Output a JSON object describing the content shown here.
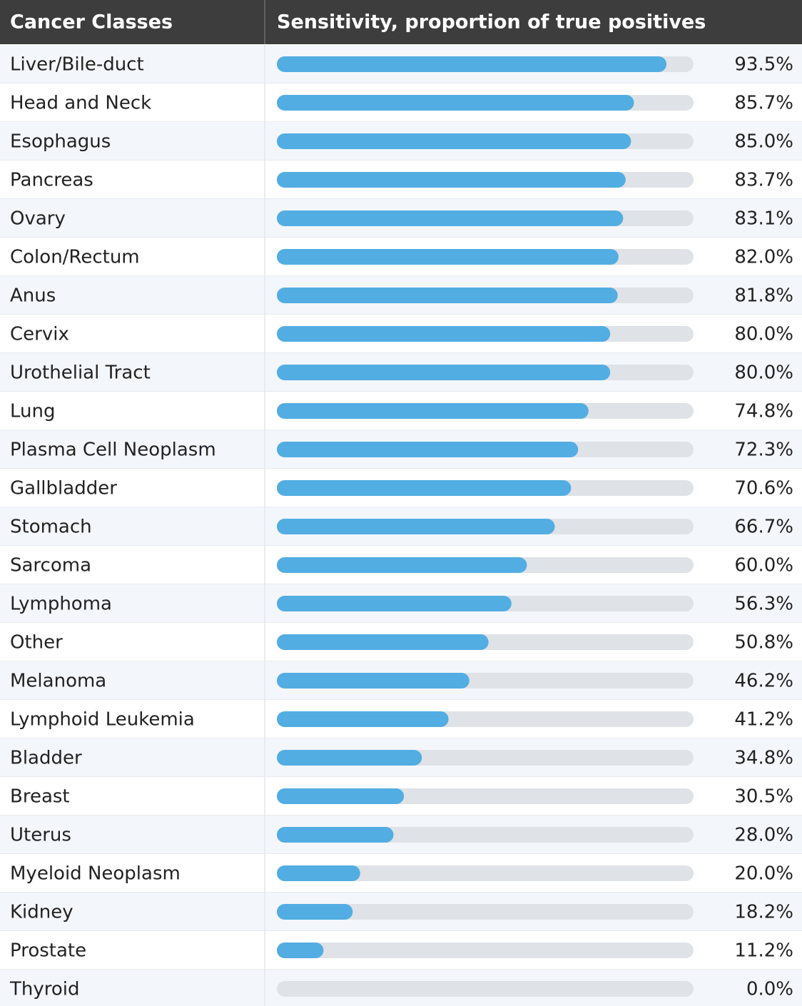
{
  "chart_data": {
    "type": "bar",
    "category_header": "Cancer Classes",
    "value_header": "Sensitivity, proportion of true positives",
    "categories": [
      "Liver/Bile-duct",
      "Head and Neck",
      "Esophagus",
      "Pancreas",
      "Ovary",
      "Colon/Rectum",
      "Anus",
      "Cervix",
      "Urothelial Tract",
      "Lung",
      "Plasma Cell Neoplasm",
      "Gallbladder",
      "Stomach",
      "Sarcoma",
      "Lymphoma",
      "Other",
      "Melanoma",
      "Lymphoid Leukemia",
      "Bladder",
      "Breast",
      "Uterus",
      "Myeloid Neoplasm",
      "Kidney",
      "Prostate",
      "Thyroid"
    ],
    "values": [
      93.5,
      85.7,
      85.0,
      83.7,
      83.1,
      82.0,
      81.8,
      80.0,
      80.0,
      74.8,
      72.3,
      70.6,
      66.7,
      60.0,
      56.3,
      50.8,
      46.2,
      41.2,
      34.8,
      30.5,
      28.0,
      20.0,
      18.2,
      11.2,
      0.0
    ],
    "value_labels": [
      "93.5%",
      "85.7%",
      "85.0%",
      "83.7%",
      "83.1%",
      "82.0%",
      "81.8%",
      "80.0%",
      "80.0%",
      "74.8%",
      "72.3%",
      "70.6%",
      "66.7%",
      "60.0%",
      "56.3%",
      "50.8%",
      "46.2%",
      "41.2%",
      "34.8%",
      "30.5%",
      "28.0%",
      "20.0%",
      "18.2%",
      "11.2%",
      "0.0%"
    ],
    "xlim": [
      0,
      100
    ],
    "color": "#52ade2",
    "track_color": "#dfe2e6"
  }
}
